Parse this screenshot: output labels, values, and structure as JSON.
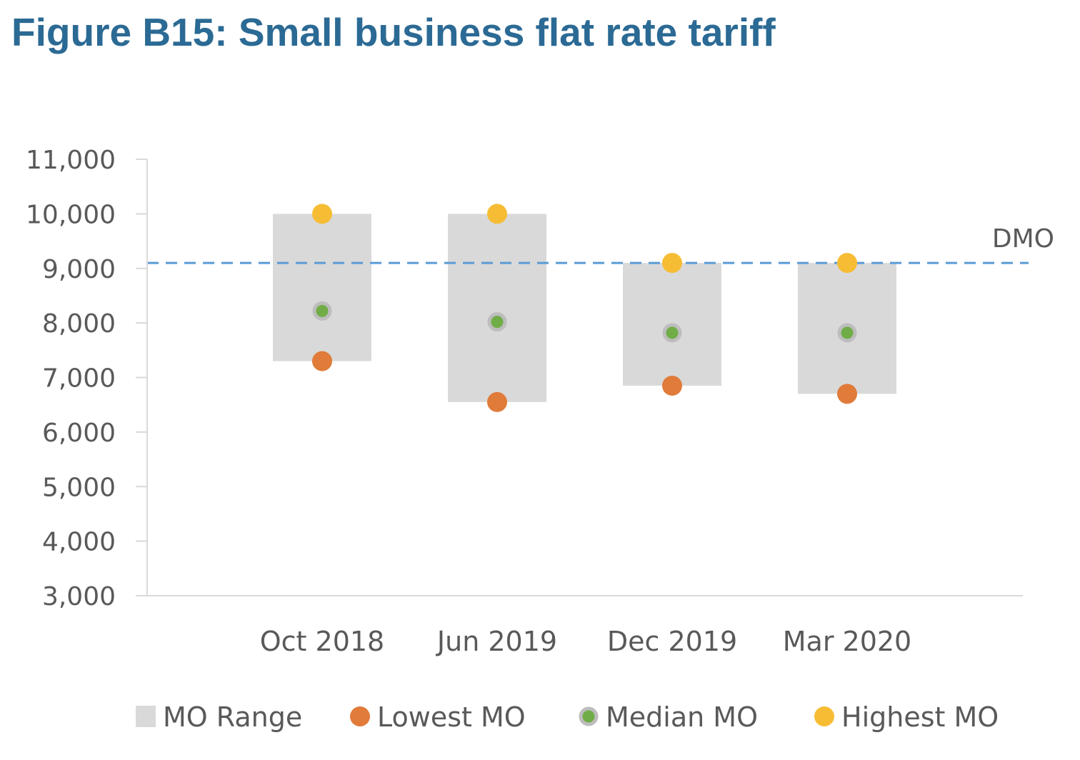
{
  "figure": {
    "title": "Figure B15: Small business flat rate tariff"
  },
  "chart_data": {
    "type": "range-dot",
    "title": "Figure B15: Small business flat rate tariff",
    "categories": [
      "Oct 2018",
      "Jun 2019",
      "Dec 2019",
      "Mar 2020"
    ],
    "ylim": [
      3000,
      11000
    ],
    "yticks": [
      3000,
      4000,
      5000,
      6000,
      7000,
      8000,
      9000,
      10000,
      11000
    ],
    "ytick_labels": [
      "3,000",
      "4,000",
      "5,000",
      "6,000",
      "7,000",
      "8,000",
      "9,000",
      "10,000",
      "11,000"
    ],
    "grid": false,
    "legend_position": "bottom",
    "range_series": {
      "name": "MO Range",
      "color": "#d9d9d9",
      "low": [
        7300,
        6550,
        6850,
        6700
      ],
      "high": [
        10000,
        10000,
        9100,
        9100
      ]
    },
    "series": [
      {
        "name": "Lowest MO",
        "color": "#e07b39",
        "values": [
          7300,
          6550,
          6850,
          6700
        ]
      },
      {
        "name": "Median MO",
        "color": "#70ad47",
        "values": [
          8220,
          8020,
          7820,
          7820
        ]
      },
      {
        "name": "Highest MO",
        "color": "#f6bd34",
        "values": [
          10000,
          10000,
          9100,
          9100
        ]
      }
    ],
    "reference_line": {
      "label": "DMO",
      "value": 9100,
      "color": "#5b9bd5",
      "style": "dashed"
    }
  }
}
